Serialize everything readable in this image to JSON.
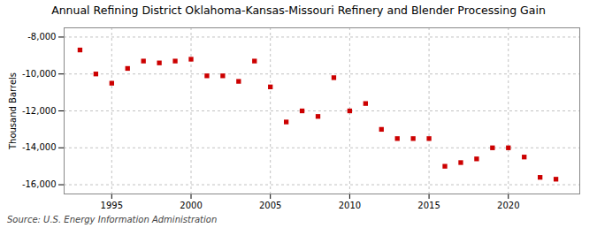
{
  "chart_data": {
    "type": "scatter",
    "title": "Annual Refining District Oklahoma-Kansas-Missouri Refinery and Blender Processing Gain",
    "ylabel": "Thousand Barrels",
    "source": "Source: U.S. Energy Information Administration",
    "x": [
      1993,
      1994,
      1995,
      1996,
      1997,
      1998,
      1999,
      2000,
      2001,
      2002,
      2003,
      2004,
      2005,
      2006,
      2007,
      2008,
      2009,
      2010,
      2011,
      2012,
      2013,
      2014,
      2015,
      2016,
      2017,
      2018,
      2019,
      2020,
      2021,
      2022,
      2023
    ],
    "values": [
      -8700,
      -10000,
      -10500,
      -9700,
      -9300,
      -9400,
      -9300,
      -9200,
      -10100,
      -10100,
      -10400,
      -9300,
      -10700,
      -12600,
      -12000,
      -12300,
      -10200,
      -12000,
      -11600,
      -13000,
      -13500,
      -13500,
      -13500,
      -15000,
      -14800,
      -14600,
      -14000,
      -14000,
      -14500,
      -15600,
      -15700
    ],
    "color": "#cc0000",
    "marker": "square",
    "xlim": [
      1992.0,
      2024.5
    ],
    "xticks": [
      1995,
      2000,
      2005,
      2010,
      2015,
      2020
    ],
    "ylim": [
      -16500,
      -7500
    ],
    "yticks": [
      {
        "value": -16000,
        "label": "-16,000"
      },
      {
        "value": -14000,
        "label": "-14,000"
      },
      {
        "value": -12000,
        "label": "-12,000"
      },
      {
        "value": -10000,
        "label": "-10,000"
      },
      {
        "value": -8000,
        "label": "-8,000"
      }
    ],
    "grid": true
  }
}
